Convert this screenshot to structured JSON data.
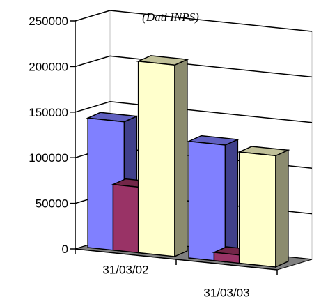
{
  "chart_data": {
    "type": "bar",
    "subtitle": "(Dati INPS)",
    "categories": [
      "31/03/02",
      "31/03/03"
    ],
    "series": [
      {
        "values": [
          142000,
          128000
        ]
      },
      {
        "values": [
          72000,
          9000
        ]
      },
      {
        "values": [
          210000,
          122000
        ]
      }
    ],
    "ylim": [
      0,
      250000
    ],
    "yticks": [
      "0",
      "50000",
      "100000",
      "150000",
      "200000",
      "250000"
    ],
    "grid": true,
    "legend": "none",
    "colors": {
      "series_front": [
        "#8080ff",
        "#993366",
        "#ffffcc"
      ],
      "series_side": [
        "#40408b",
        "#541d38",
        "#8b8b6e"
      ],
      "series_top": [
        "#6060c0",
        "#732648",
        "#c0c099"
      ],
      "floor": "#808080",
      "wall": "#ffffff"
    }
  }
}
